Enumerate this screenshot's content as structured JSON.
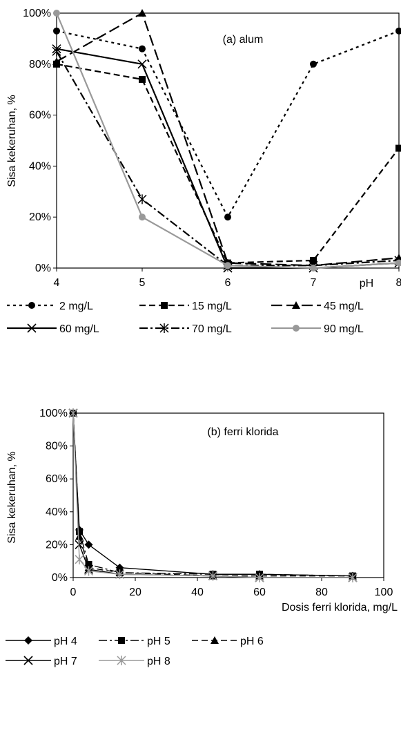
{
  "chart_data": [
    {
      "type": "line",
      "title": "(a) alum",
      "xlabel": "pH",
      "ylabel": "Sisa kekeruhan, %",
      "x": [
        4,
        5,
        6,
        7,
        8
      ],
      "xlim": [
        4,
        8
      ],
      "ylim": [
        0,
        100
      ],
      "x_ticks": [
        "4",
        "5",
        "6",
        "7",
        "8"
      ],
      "y_ticks": [
        "0%",
        "20%",
        "40%",
        "60%",
        "80%",
        "100%"
      ],
      "legend_position": "bottom",
      "series": [
        {
          "name": "2 mg/L",
          "values": [
            93,
            86,
            20,
            80,
            93
          ],
          "color": "#000000",
          "dash": "dot",
          "marker": "circle"
        },
        {
          "name": "15 mg/L",
          "values": [
            80,
            74,
            2,
            3,
            47
          ],
          "color": "#000000",
          "dash": "dash",
          "marker": "square"
        },
        {
          "name": "45 mg/L",
          "values": [
            81,
            100,
            2,
            1,
            4
          ],
          "color": "#000000",
          "dash": "longdash",
          "marker": "triangle"
        },
        {
          "name": "60 mg/L",
          "values": [
            86,
            80,
            0,
            0,
            2
          ],
          "color": "#000000",
          "dash": "solid",
          "marker": "x"
        },
        {
          "name": "70 mg/L",
          "values": [
            85,
            27,
            1,
            1,
            3
          ],
          "color": "#000000",
          "dash": "dashdot",
          "marker": "star"
        },
        {
          "name": "90 mg/L",
          "values": [
            100,
            20,
            1,
            0,
            2
          ],
          "color": "#999999",
          "dash": "solid",
          "marker": "circle"
        }
      ]
    },
    {
      "type": "line",
      "title": "(b) ferri klorida",
      "xlabel": "Dosis ferri klorida, mg/L",
      "ylabel": "Sisa kekeruhan, %",
      "x": [
        0,
        2,
        5,
        15,
        45,
        60,
        90
      ],
      "xlim": [
        0,
        100
      ],
      "ylim": [
        0,
        100
      ],
      "x_ticks": [
        "0",
        "20",
        "40",
        "60",
        "80",
        "100"
      ],
      "y_ticks": [
        "0%",
        "20%",
        "40%",
        "60%",
        "80%",
        "100%"
      ],
      "legend_position": "bottom",
      "series": [
        {
          "name": "pH 4",
          "values": [
            100,
            29,
            20,
            6,
            2,
            2,
            1
          ],
          "color": "#000000",
          "dash": "solid",
          "marker": "diamond"
        },
        {
          "name": "pH 5",
          "values": [
            100,
            28,
            8,
            3,
            2,
            2,
            1
          ],
          "color": "#000000",
          "dash": "dashdot",
          "marker": "square"
        },
        {
          "name": "pH 6",
          "values": [
            100,
            25,
            6,
            3,
            1,
            1,
            1
          ],
          "color": "#000000",
          "dash": "dash",
          "marker": "triangle"
        },
        {
          "name": "pH 7",
          "values": [
            100,
            20,
            5,
            2,
            1,
            0,
            0
          ],
          "color": "#000000",
          "dash": "solid",
          "marker": "x"
        },
        {
          "name": "pH 8",
          "values": [
            100,
            11,
            4,
            2,
            1,
            0,
            0
          ],
          "color": "#999999",
          "dash": "solid",
          "marker": "star"
        }
      ]
    }
  ]
}
